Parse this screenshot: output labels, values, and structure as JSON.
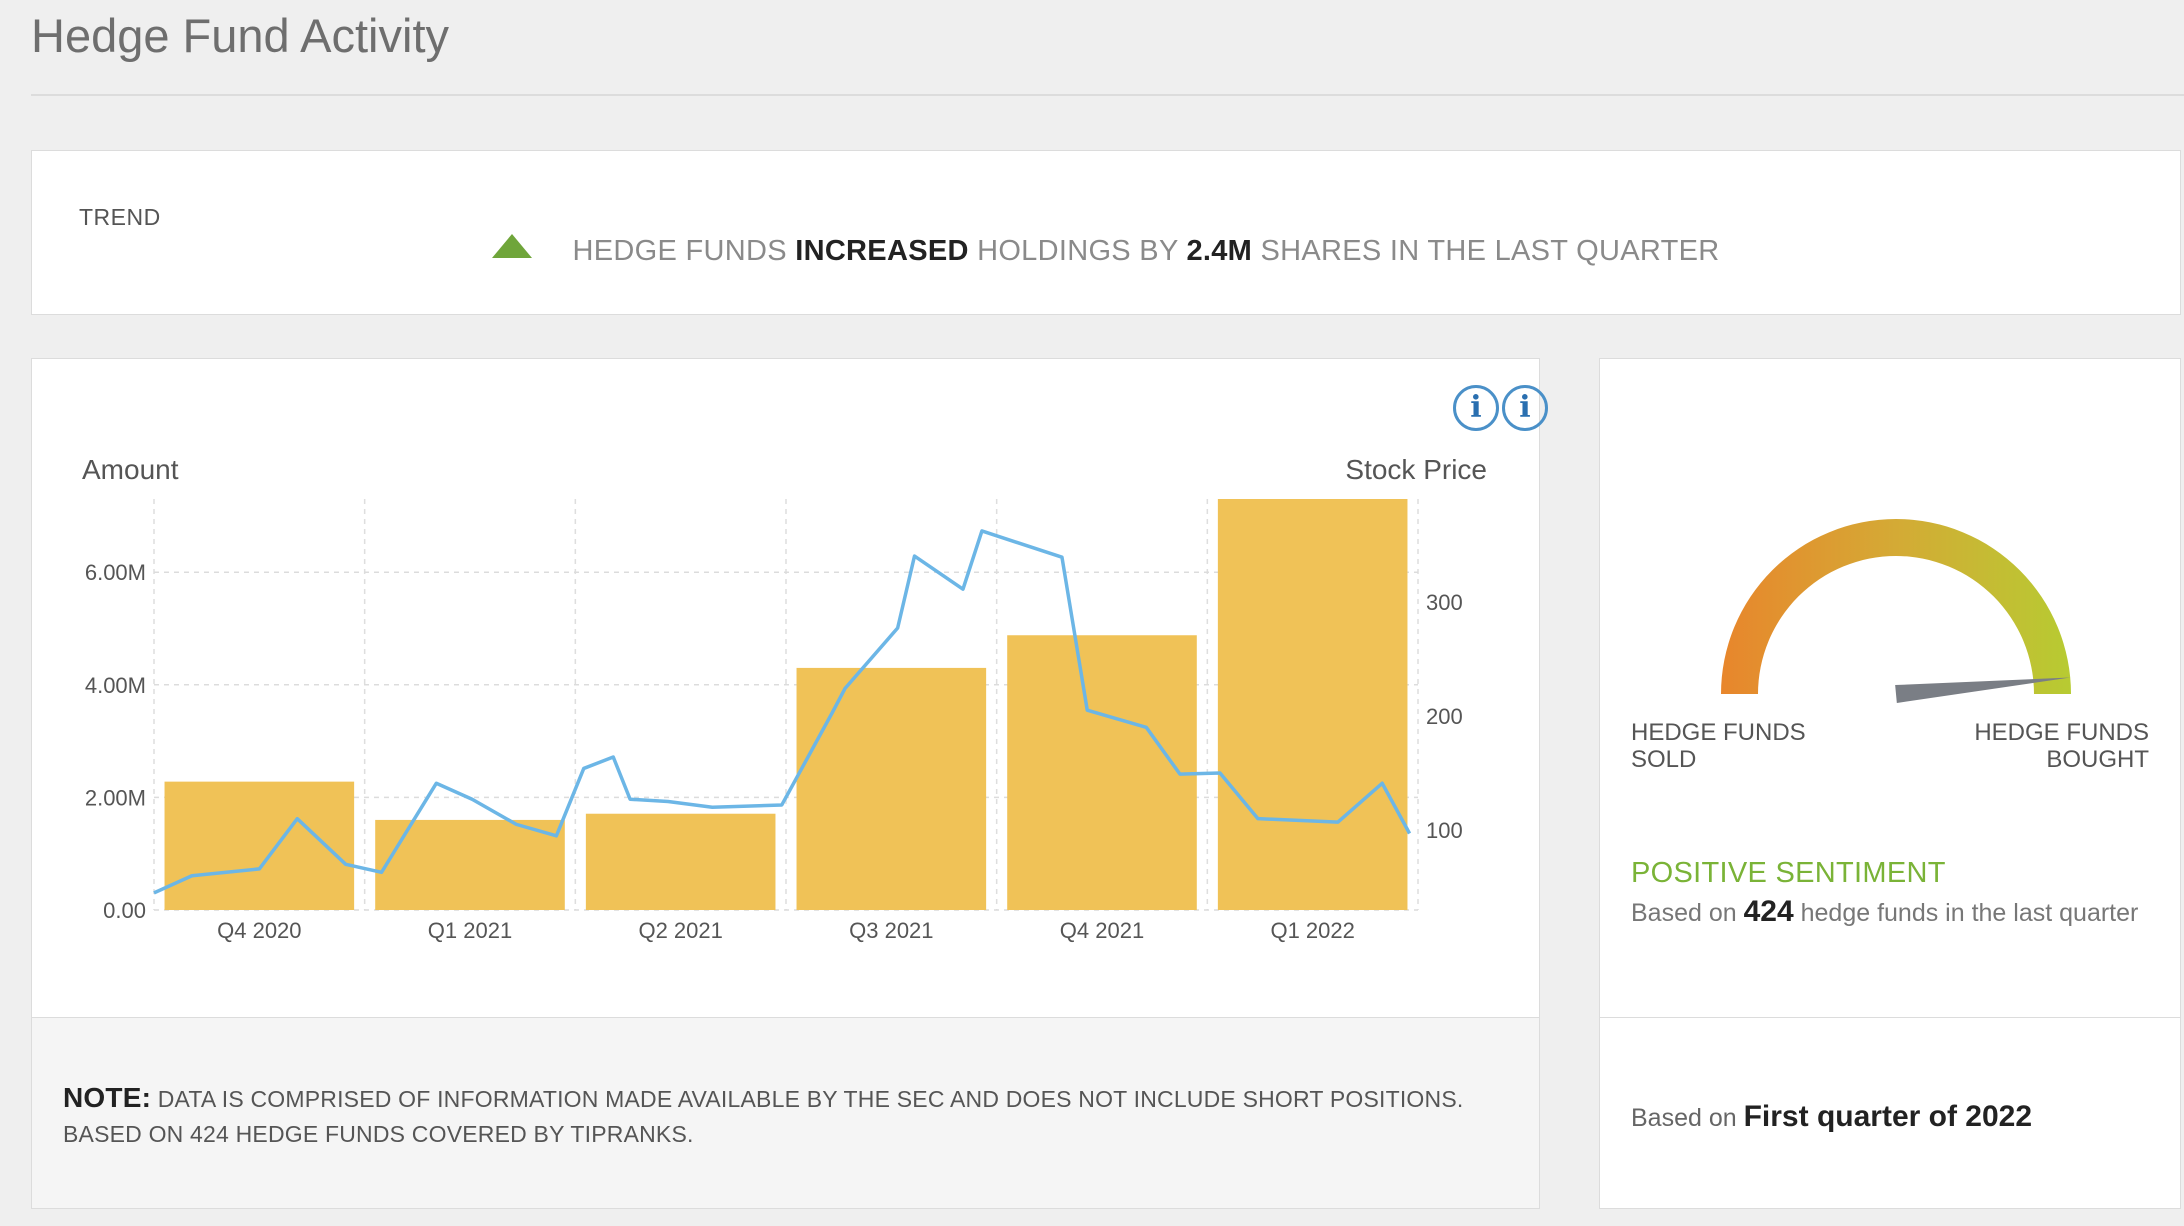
{
  "page": {
    "title": "Hedge Fund Activity"
  },
  "trend": {
    "label": "TREND",
    "prefix": "HEDGE FUNDS",
    "direction": "INCREASED",
    "middle": "HOLDINGS BY",
    "amount": "2.4M",
    "suffix": "SHARES IN THE LAST QUARTER",
    "icon": "triangle-up-icon",
    "icon_color": "#6fa53a"
  },
  "chart_panel": {
    "info_icon": "info-icon",
    "left_axis_title": "Amount",
    "right_axis_title": "Stock Price"
  },
  "chart_data": {
    "type": "bar",
    "categories": [
      "Q4 2020",
      "Q1 2021",
      "Q2 2021",
      "Q3 2021",
      "Q4 2021",
      "Q1 2022"
    ],
    "series": [
      {
        "values": [
          2.28,
          1.6,
          1.71,
          4.3,
          4.88,
          7.3
        ],
        "axis": "left",
        "type": "bar",
        "color": "#f0c257"
      },
      {
        "axis": "right",
        "type": "line",
        "color": "#6cb6e6",
        "x": [
          0,
          0.18,
          0.5,
          0.68,
          0.91,
          1.08,
          1.34,
          1.51,
          1.72,
          1.91,
          2.04,
          2.18,
          2.26,
          2.44,
          2.65,
          2.98,
          3.22,
          3.28,
          3.53,
          3.61,
          3.84,
          3.93,
          4.31,
          4.43,
          4.71,
          4.87,
          5.06,
          5.24,
          5.62,
          5.83,
          5.96
        ],
        "values": [
          45,
          60,
          66,
          110,
          70,
          63,
          141,
          127,
          105,
          95,
          154,
          164,
          127,
          125,
          120,
          122,
          203,
          224,
          277,
          340,
          311,
          362,
          339,
          205,
          190,
          149,
          150,
          110,
          107,
          141,
          97
        ]
      }
    ],
    "left_ticks": [
      "0.00",
      "2.00M",
      "4.00M",
      "6.00M"
    ],
    "right_ticks": [
      "100",
      "200",
      "300"
    ],
    "left_ylim": [
      0,
      7.3
    ],
    "right_ylim": [
      30,
      390
    ],
    "xlabel": "",
    "ylabel": "Amount",
    "y2label": "Stock Price",
    "grid": true
  },
  "note": {
    "label": "NOTE:",
    "line1": "DATA IS COMPRISED OF INFORMATION MADE AVAILABLE BY THE SEC AND DOES NOT INCLUDE SHORT POSITIONS.",
    "line2": "BASED ON 424 HEDGE FUNDS COVERED BY TIPRANKS."
  },
  "gauge": {
    "info_icon": "info-icon",
    "left_label_line1": "HEDGE FUNDS",
    "left_label_line2": "SOLD",
    "right_label_line1": "HEDGE FUNDS",
    "right_label_line2": "BOUGHT",
    "sentiment": "POSITIVE SENTIMENT",
    "based_prefix": "Based on",
    "based_count": "424",
    "based_suffix": "hedge funds in the last quarter",
    "needle_value": 0.97,
    "colors": {
      "start": "#e8862c",
      "mid": "#d4aa35",
      "end": "#b7cb32",
      "needle": "#7a7e85"
    }
  },
  "footer": {
    "prefix": "Based on",
    "period": "First quarter of 2022"
  }
}
